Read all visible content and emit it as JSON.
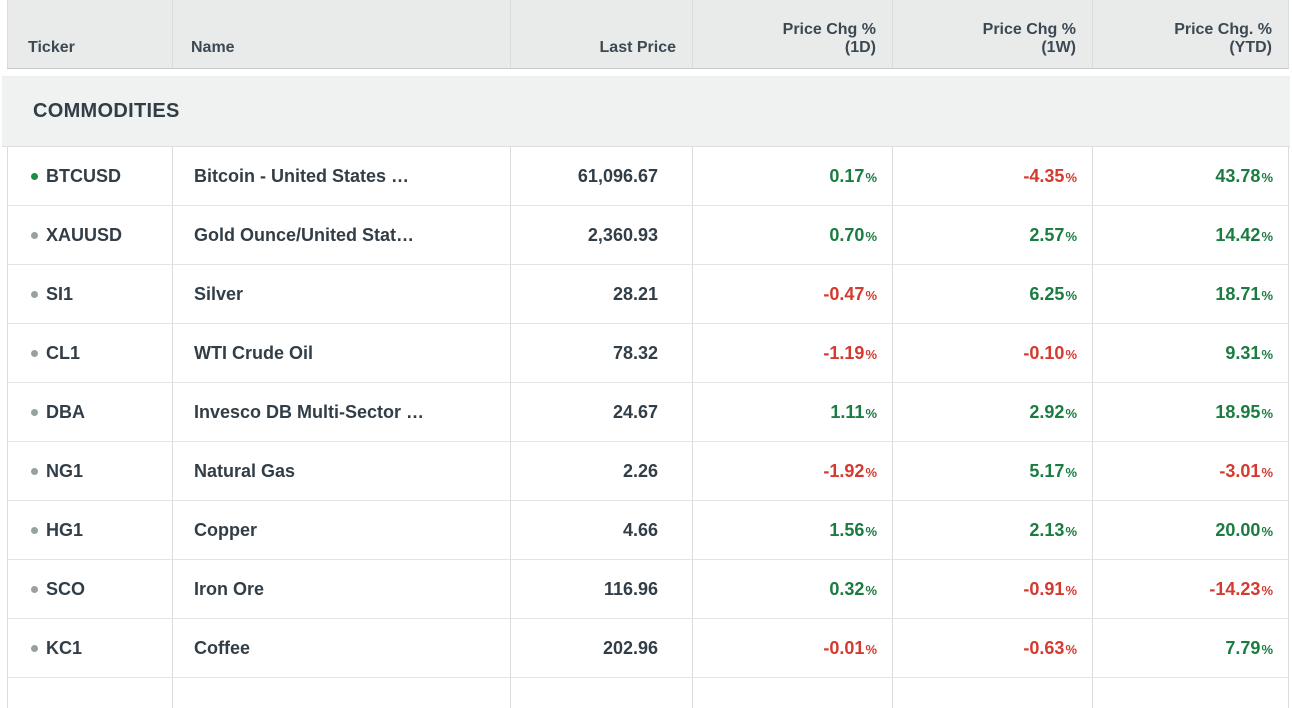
{
  "colors": {
    "positive": "#1b7c41",
    "negative": "#d43a2f",
    "bullet-active": "#208b46",
    "bullet-neutral": "#99a0a3",
    "header-bg": "#e9ebea",
    "section-bg": "#f0f2f1"
  },
  "pct_suffix": "%",
  "header": {
    "ticker": "Ticker",
    "name": "Name",
    "last_price": "Last Price",
    "chg_1d": {
      "line1": "Price Chg %",
      "line2": "(1D)"
    },
    "chg_1w": {
      "line1": "Price Chg %",
      "line2": "(1W)"
    },
    "chg_ytd": {
      "line1": "Price Chg. %",
      "line2": "(YTD)"
    }
  },
  "section": {
    "title": "COMMODITIES"
  },
  "rows": [
    {
      "ticker": "BTCUSD",
      "bullet": "green",
      "name": "Bitcoin - United States …",
      "last_price": "61,096.67",
      "d1": "0.17",
      "d1_dir": "pos",
      "w1": "-4.35",
      "w1_dir": "neg",
      "ytd": "43.78",
      "ytd_dir": "pos"
    },
    {
      "ticker": "XAUUSD",
      "bullet": "gray",
      "name": "Gold Ounce/United Stat…",
      "last_price": "2,360.93",
      "d1": "0.70",
      "d1_dir": "pos",
      "w1": "2.57",
      "w1_dir": "pos",
      "ytd": "14.42",
      "ytd_dir": "pos"
    },
    {
      "ticker": "SI1",
      "bullet": "gray",
      "name": "Silver",
      "last_price": "28.21",
      "d1": "-0.47",
      "d1_dir": "neg",
      "w1": "6.25",
      "w1_dir": "pos",
      "ytd": "18.71",
      "ytd_dir": "pos"
    },
    {
      "ticker": "CL1",
      "bullet": "gray",
      "name": "WTI Crude Oil",
      "last_price": "78.32",
      "d1": "-1.19",
      "d1_dir": "neg",
      "w1": "-0.10",
      "w1_dir": "neg",
      "ytd": "9.31",
      "ytd_dir": "pos"
    },
    {
      "ticker": "DBA",
      "bullet": "gray",
      "name": "Invesco DB Multi-Sector …",
      "last_price": "24.67",
      "d1": "1.11",
      "d1_dir": "pos",
      "w1": "2.92",
      "w1_dir": "pos",
      "ytd": "18.95",
      "ytd_dir": "pos"
    },
    {
      "ticker": "NG1",
      "bullet": "gray",
      "name": "Natural Gas",
      "last_price": "2.26",
      "d1": "-1.92",
      "d1_dir": "neg",
      "w1": "5.17",
      "w1_dir": "pos",
      "ytd": "-3.01",
      "ytd_dir": "neg"
    },
    {
      "ticker": "HG1",
      "bullet": "gray",
      "name": "Copper",
      "last_price": "4.66",
      "d1": "1.56",
      "d1_dir": "pos",
      "w1": "2.13",
      "w1_dir": "pos",
      "ytd": "20.00",
      "ytd_dir": "pos"
    },
    {
      "ticker": "SCO",
      "bullet": "gray",
      "name": "Iron Ore",
      "last_price": "116.96",
      "d1": "0.32",
      "d1_dir": "pos",
      "w1": "-0.91",
      "w1_dir": "neg",
      "ytd": "-14.23",
      "ytd_dir": "neg"
    },
    {
      "ticker": "KC1",
      "bullet": "gray",
      "name": "Coffee",
      "last_price": "202.96",
      "d1": "-0.01",
      "d1_dir": "neg",
      "w1": "-0.63",
      "w1_dir": "neg",
      "ytd": "7.79",
      "ytd_dir": "pos"
    }
  ]
}
